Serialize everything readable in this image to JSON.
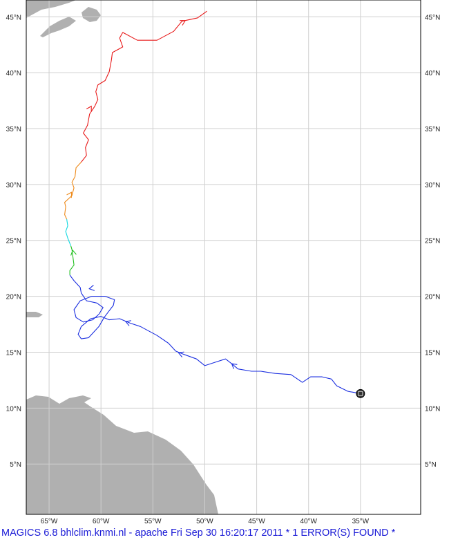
{
  "map": {
    "lon_range": [
      -67.2,
      -29.2
    ],
    "lat_range": [
      0.5,
      46.5
    ],
    "lon_labels": [
      "65°W",
      "60°W",
      "55°W",
      "50°W",
      "45°W",
      "40°W",
      "35°W"
    ],
    "lon_values": [
      -65,
      -60,
      -55,
      -50,
      -45,
      -40,
      -35
    ],
    "lat_labels": [
      "5°N",
      "10°N",
      "15°N",
      "20°N",
      "25°N",
      "30°N",
      "35°N",
      "40°N",
      "45°N"
    ],
    "lat_values": [
      5,
      10,
      15,
      20,
      25,
      30,
      35,
      40,
      45
    ],
    "grid": true,
    "colors": {
      "land": "#b0b0b0",
      "grid": "#cfcfcf",
      "frame": "#000000",
      "track_blue": "#1a2ee0",
      "track_green": "#22c020",
      "track_cyan": "#10d8e0",
      "track_orange": "#ee8a1a",
      "track_red": "#e81818",
      "start_marker": "#333333"
    }
  },
  "track": {
    "start_point": [
      -35.0,
      11.3
    ],
    "blue": [
      [
        -35.0,
        11.3
      ],
      [
        -36.2,
        11.5
      ],
      [
        -37.3,
        12.0
      ],
      [
        -37.8,
        12.6
      ],
      [
        -38.7,
        12.8
      ],
      [
        -39.8,
        12.8
      ],
      [
        -40.6,
        12.3
      ],
      [
        -41.7,
        13.0
      ],
      [
        -43.2,
        13.1
      ],
      [
        -44.6,
        13.3
      ],
      [
        -45.5,
        13.3
      ],
      [
        -46.8,
        13.5
      ],
      [
        -47.3,
        13.9
      ],
      [
        -48.0,
        14.4
      ],
      [
        -49.0,
        14.1
      ],
      [
        -50.0,
        13.8
      ],
      [
        -50.8,
        14.4
      ],
      [
        -52.0,
        14.8
      ],
      [
        -52.8,
        15.1
      ],
      [
        -53.5,
        15.8
      ],
      [
        -54.6,
        16.5
      ],
      [
        -56.2,
        17.3
      ],
      [
        -57.2,
        17.6
      ],
      [
        -58.2,
        18.0
      ],
      [
        -59.2,
        17.9
      ],
      [
        -60.0,
        18.2
      ],
      [
        -61.0,
        18.0
      ],
      [
        -61.9,
        17.3
      ],
      [
        -62.2,
        16.6
      ],
      [
        -61.9,
        16.2
      ],
      [
        -61.2,
        16.3
      ],
      [
        -60.8,
        16.7
      ],
      [
        -60.2,
        17.3
      ],
      [
        -59.7,
        18.1
      ],
      [
        -59.3,
        18.6
      ],
      [
        -58.8,
        19.2
      ],
      [
        -58.7,
        19.7
      ],
      [
        -59.6,
        20.0
      ],
      [
        -60.9,
        20.0
      ],
      [
        -62.0,
        19.6
      ],
      [
        -62.6,
        18.8
      ],
      [
        -62.4,
        18.1
      ],
      [
        -61.7,
        17.7
      ],
      [
        -60.8,
        17.9
      ],
      [
        -60.2,
        18.4
      ],
      [
        -59.8,
        19.0
      ],
      [
        -60.4,
        19.4
      ],
      [
        -61.4,
        19.6
      ],
      [
        -61.9,
        20.3
      ],
      [
        -62.0,
        20.8
      ],
      [
        -62.6,
        21.4
      ],
      [
        -63.0,
        21.9
      ]
    ],
    "green": [
      [
        -63.0,
        21.9
      ],
      [
        -63.0,
        22.3
      ],
      [
        -62.6,
        22.8
      ],
      [
        -62.7,
        23.5
      ],
      [
        -62.8,
        24.2
      ],
      [
        -62.9,
        24.5
      ]
    ],
    "cyan": [
      [
        -62.9,
        24.5
      ],
      [
        -63.2,
        25.2
      ],
      [
        -63.4,
        25.8
      ],
      [
        -63.2,
        26.3
      ],
      [
        -63.3,
        26.9
      ]
    ],
    "orange": [
      [
        -63.3,
        26.9
      ],
      [
        -63.5,
        27.3
      ],
      [
        -63.4,
        28.0
      ],
      [
        -63.5,
        28.4
      ],
      [
        -62.8,
        29.0
      ],
      [
        -62.6,
        29.7
      ],
      [
        -62.8,
        30.2
      ],
      [
        -62.5,
        30.7
      ],
      [
        -62.4,
        31.5
      ],
      [
        -61.9,
        32.0
      ]
    ],
    "red": [
      [
        -61.9,
        32.0
      ],
      [
        -61.4,
        32.6
      ],
      [
        -61.5,
        33.3
      ],
      [
        -61.2,
        34.0
      ],
      [
        -61.7,
        34.6
      ],
      [
        -61.3,
        35.3
      ],
      [
        -61.1,
        36.3
      ],
      [
        -60.6,
        37.0
      ],
      [
        -60.3,
        37.6
      ],
      [
        -60.5,
        38.3
      ],
      [
        -60.3,
        38.9
      ],
      [
        -59.6,
        39.3
      ],
      [
        -59.2,
        40.1
      ],
      [
        -59.0,
        41.1
      ],
      [
        -58.9,
        41.8
      ],
      [
        -57.9,
        42.3
      ],
      [
        -58.2,
        43.1
      ],
      [
        -57.9,
        43.6
      ],
      [
        -56.5,
        42.9
      ],
      [
        -54.6,
        42.9
      ],
      [
        -53.0,
        43.7
      ],
      [
        -52.2,
        44.6
      ],
      [
        -50.7,
        44.9
      ],
      [
        -49.8,
        45.5
      ]
    ],
    "arrows": [
      [
        -47.3,
        13.9
      ],
      [
        -52.4,
        14.9
      ],
      [
        -57.5,
        17.7
      ],
      [
        -61.0,
        20.7
      ],
      [
        -62.7,
        24.0
      ],
      [
        -62.9,
        29.2
      ],
      [
        -61.0,
        36.9
      ],
      [
        -52.0,
        44.6
      ]
    ]
  },
  "footer": {
    "text": "MAGICS 6.8 bhlclim.knmi.nl - apache Fri Sep 30 16:20:17 2011 *    1 ERROR(S) FOUND *"
  }
}
